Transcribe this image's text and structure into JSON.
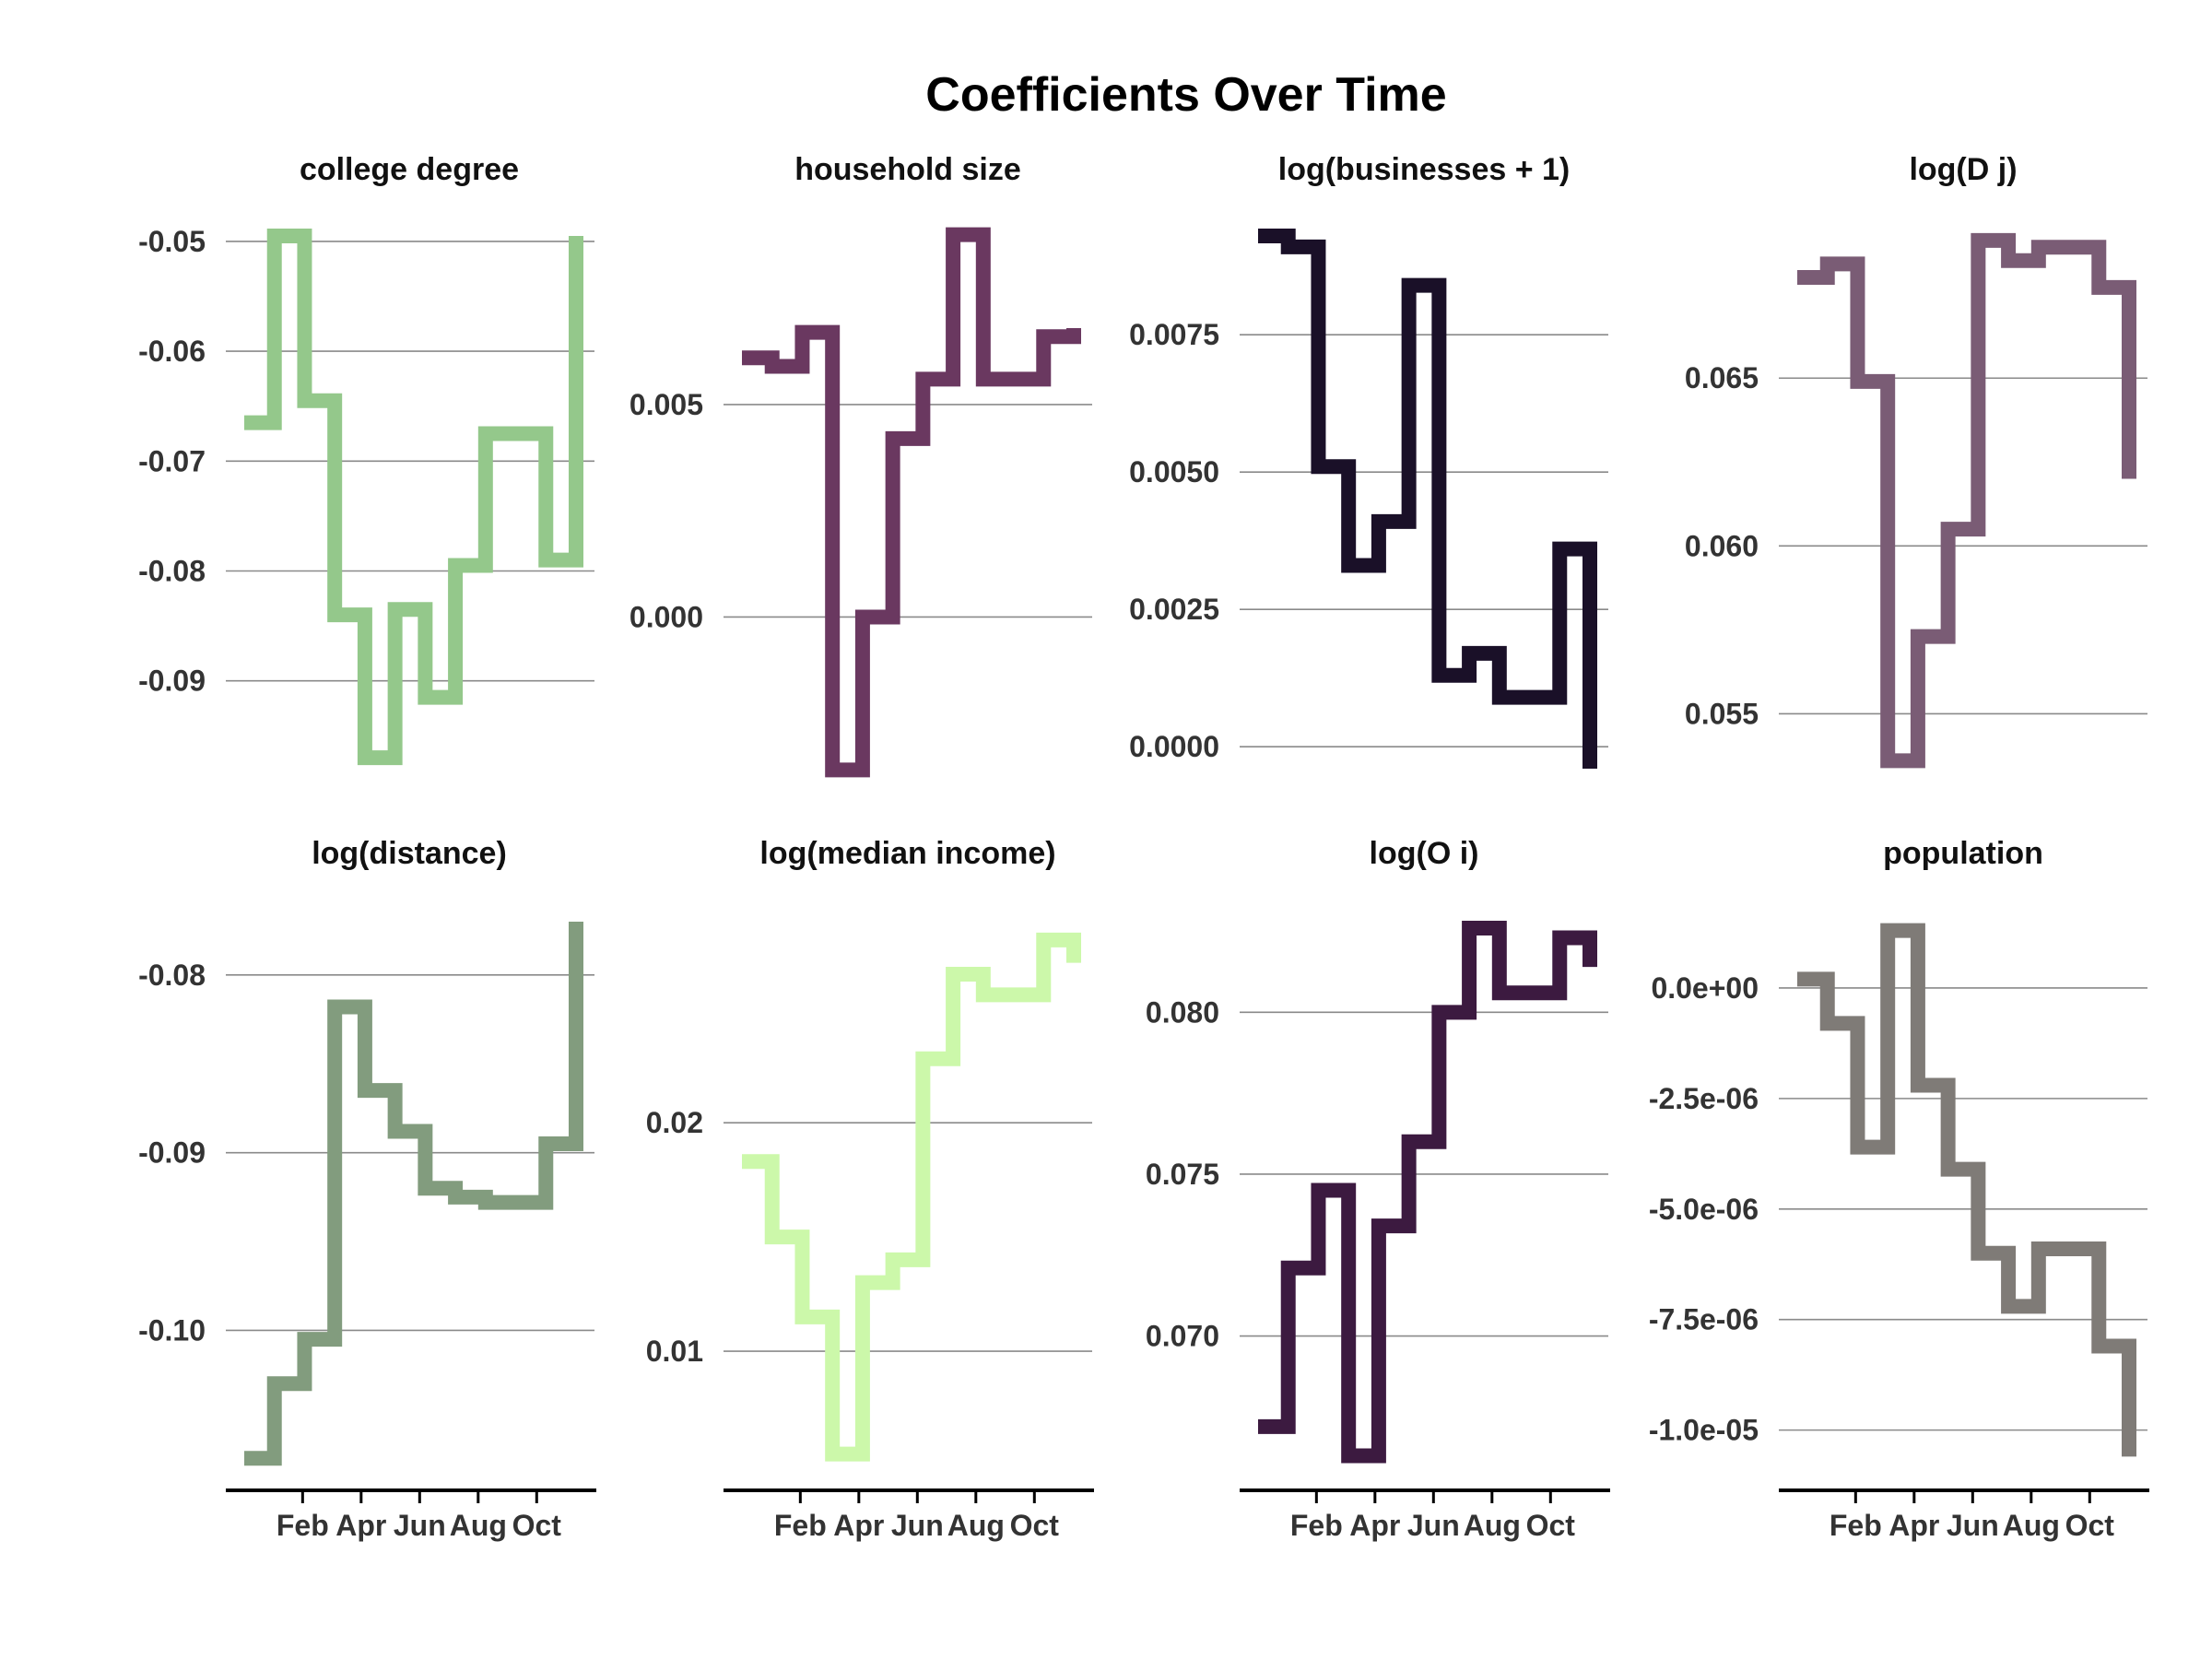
{
  "figure": {
    "title": "Coefficients Over Time"
  },
  "chart_data": [
    {
      "type": "line",
      "step": "post",
      "title": "college degree",
      "x": [
        "Jan",
        "Feb",
        "Mar",
        "Apr",
        "May",
        "Jun",
        "Jul",
        "Aug",
        "Sep",
        "Oct",
        "Nov",
        "Dec"
      ],
      "xtick_labels": [
        "Feb",
        "Apr",
        "Jun",
        "Aug",
        "Oct"
      ],
      "y": [
        -0.0665,
        -0.0495,
        -0.0645,
        -0.084,
        -0.097,
        -0.0835,
        -0.0915,
        -0.0795,
        -0.0675,
        -0.0675,
        -0.079,
        -0.0495
      ],
      "ylim": [
        -0.0985,
        -0.049
      ],
      "yticks": [
        -0.05,
        -0.06,
        -0.07,
        -0.08,
        -0.09
      ],
      "ytick_labels": [
        "-0.05",
        "-0.06",
        "-0.07",
        "-0.08",
        "-0.09"
      ],
      "color": "#94c88b",
      "grid": "y"
    },
    {
      "type": "line",
      "step": "post",
      "title": "household size",
      "x": [
        "Jan",
        "Feb",
        "Mar",
        "Apr",
        "May",
        "Jun",
        "Jul",
        "Aug",
        "Sep",
        "Oct",
        "Nov",
        "Dec"
      ],
      "xtick_labels": [
        "Feb",
        "Apr",
        "Jun",
        "Aug",
        "Oct"
      ],
      "y": [
        0.0061,
        0.0059,
        0.0067,
        -0.0036,
        0.0,
        0.0042,
        0.0056,
        0.009,
        0.0056,
        0.0056,
        0.0066,
        0.0068
      ],
      "ylim": [
        -0.0037,
        0.0091
      ],
      "yticks": [
        0.005,
        0.0
      ],
      "ytick_labels": [
        "0.005",
        "0.000"
      ],
      "color": "#6a3860",
      "grid": "y"
    },
    {
      "type": "line",
      "step": "post",
      "title": "log(businesses + 1)",
      "x": [
        "Jan",
        "Feb",
        "Mar",
        "Apr",
        "May",
        "Jun",
        "Jul",
        "Aug",
        "Sep",
        "Oct",
        "Nov",
        "Dec"
      ],
      "xtick_labels": [
        "Feb",
        "Apr",
        "Jun",
        "Aug",
        "Oct"
      ],
      "y": [
        0.0093,
        0.0091,
        0.0051,
        0.0033,
        0.0041,
        0.0084,
        0.0013,
        0.0017,
        0.0009,
        0.0009,
        0.0036,
        -0.0004
      ],
      "ylim": [
        -0.0005,
        0.0094
      ],
      "yticks": [
        0.0075,
        0.005,
        0.0025,
        0.0
      ],
      "ytick_labels": [
        "0.0075",
        "0.0050",
        "0.0025",
        "0.0000"
      ],
      "color": "#1a1028",
      "grid": "y"
    },
    {
      "type": "line",
      "step": "post",
      "title": "log(D j)",
      "x": [
        "Jan",
        "Feb",
        "Mar",
        "Apr",
        "May",
        "Jun",
        "Jul",
        "Aug",
        "Sep",
        "Oct",
        "Nov",
        "Dec"
      ],
      "xtick_labels": [
        "Feb",
        "Apr",
        "Jun",
        "Aug",
        "Oct"
      ],
      "y": [
        0.068,
        0.0684,
        0.0649,
        0.0536,
        0.0573,
        0.0605,
        0.0691,
        0.0685,
        0.0689,
        0.0689,
        0.0677,
        0.062
      ],
      "ylim": [
        0.0532,
        0.0694
      ],
      "yticks": [
        0.065,
        0.06,
        0.055
      ],
      "ytick_labels": [
        "0.065",
        "0.060",
        "0.055"
      ],
      "color": "#7a5c75",
      "grid": "y"
    },
    {
      "type": "line",
      "step": "post",
      "title": "log(distance)",
      "x": [
        "Jan",
        "Feb",
        "Mar",
        "Apr",
        "May",
        "Jun",
        "Jul",
        "Aug",
        "Sep",
        "Oct",
        "Nov",
        "Dec"
      ],
      "xtick_labels": [
        "Feb",
        "Apr",
        "Jun",
        "Aug",
        "Oct"
      ],
      "y": [
        -0.1072,
        -0.103,
        -0.1005,
        -0.0818,
        -0.0865,
        -0.0888,
        -0.092,
        -0.0925,
        -0.0928,
        -0.0928,
        -0.0895,
        -0.077
      ],
      "ylim": [
        -0.1076,
        -0.077
      ],
      "yticks": [
        -0.08,
        -0.09,
        -0.1
      ],
      "ytick_labels": [
        "-0.08",
        "-0.09",
        "-0.10"
      ],
      "color": "#829c7e",
      "grid": "y"
    },
    {
      "type": "line",
      "step": "post",
      "title": "log(median income)",
      "x": [
        "Jan",
        "Feb",
        "Mar",
        "Apr",
        "May",
        "Jun",
        "Jul",
        "Aug",
        "Sep",
        "Oct",
        "Nov",
        "Dec"
      ],
      "xtick_labels": [
        "Feb",
        "Apr",
        "Jun",
        "Aug",
        "Oct"
      ],
      "y": [
        0.0183,
        0.015,
        0.0115,
        0.0055,
        0.013,
        0.014,
        0.0228,
        0.0265,
        0.0256,
        0.0256,
        0.028,
        0.027
      ],
      "ylim": [
        0.005,
        0.0288
      ],
      "yticks": [
        0.02,
        0.01
      ],
      "ytick_labels": [
        "0.02",
        "0.01"
      ],
      "color": "#ccf8aa",
      "grid": "y"
    },
    {
      "type": "line",
      "step": "post",
      "title": "log(O i)",
      "x": [
        "Jan",
        "Feb",
        "Mar",
        "Apr",
        "May",
        "Jun",
        "Jul",
        "Aug",
        "Sep",
        "Oct",
        "Nov",
        "Dec"
      ],
      "xtick_labels": [
        "Feb",
        "Apr",
        "Jun",
        "Aug",
        "Oct"
      ],
      "y": [
        0.0672,
        0.0721,
        0.0745,
        0.0663,
        0.0734,
        0.076,
        0.08,
        0.0826,
        0.0806,
        0.0806,
        0.0823,
        0.0814
      ],
      "ylim": [
        0.066,
        0.0828
      ],
      "yticks": [
        0.08,
        0.075,
        0.07
      ],
      "ytick_labels": [
        "0.080",
        "0.075",
        "0.070"
      ],
      "color": "#3c1a40",
      "grid": "y"
    },
    {
      "type": "line",
      "step": "post",
      "title": "population",
      "x": [
        "Jan",
        "Feb",
        "Mar",
        "Apr",
        "May",
        "Jun",
        "Jul",
        "Aug",
        "Sep",
        "Oct",
        "Nov",
        "Dec"
      ],
      "xtick_labels": [
        "Feb",
        "Apr",
        "Jun",
        "Aug",
        "Oct"
      ],
      "y": [
        2e-07,
        -8e-07,
        -3.6e-06,
        1.3e-06,
        -2.2e-06,
        -4.1e-06,
        -6e-06,
        -7.2e-06,
        -5.9e-06,
        -5.9e-06,
        -8.1e-06,
        -1.06e-05
      ],
      "ylim": [
        -1.08e-05,
        1.5e-06
      ],
      "yticks": [
        0.0,
        -2.5e-06,
        -5e-06,
        -7.5e-06,
        -1e-05
      ],
      "ytick_labels": [
        "0.0e+00",
        "-2.5e-06",
        "-5.0e-06",
        "-7.5e-06",
        "-1.0e-05"
      ],
      "color": "#7f7b77",
      "grid": "y"
    }
  ]
}
